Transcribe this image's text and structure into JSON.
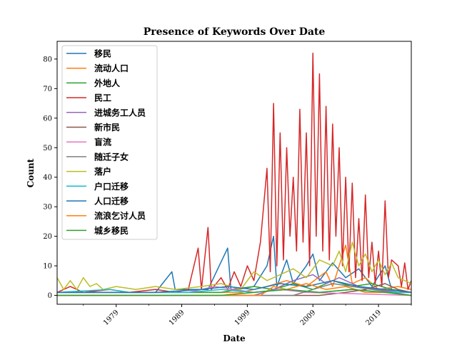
{
  "chart_data": {
    "type": "line",
    "title": "Presence of Keywords Over Date",
    "xlabel": "Date",
    "ylabel": "Count",
    "xlim": [
      1970,
      2024
    ],
    "ylim": [
      -3,
      86
    ],
    "xticks": [
      1979,
      1989,
      1999,
      2009,
      2019
    ],
    "xtick_labels": [
      "1979",
      "1989",
      "1999",
      "2009",
      "2019"
    ],
    "yticks": [
      0,
      10,
      20,
      30,
      40,
      50,
      60,
      70,
      80
    ],
    "ytick_labels": [
      "0",
      "10",
      "20",
      "30",
      "40",
      "50",
      "60",
      "70",
      "80"
    ],
    "legend_position": "top-left",
    "series": [
      {
        "name": "移民",
        "color": "#1f77b4",
        "points": [
          [
            1970,
            1
          ],
          [
            1985,
            1
          ],
          [
            1987.5,
            8
          ],
          [
            1988,
            2
          ],
          [
            1993,
            2
          ],
          [
            1996,
            16
          ],
          [
            1996.5,
            2
          ],
          [
            2000,
            3
          ],
          [
            2002,
            10
          ],
          [
            2003,
            20
          ],
          [
            2003.5,
            3
          ],
          [
            2005,
            12
          ],
          [
            2006,
            4
          ],
          [
            2008,
            10
          ],
          [
            2009,
            14
          ],
          [
            2010,
            5
          ],
          [
            2012,
            11
          ],
          [
            2014,
            6
          ],
          [
            2016,
            9
          ],
          [
            2018,
            3
          ],
          [
            2020,
            10
          ],
          [
            2021,
            2
          ],
          [
            2024,
            1
          ]
        ]
      },
      {
        "name": "流动人口",
        "color": "#ff7f0e",
        "points": [
          [
            1970,
            1
          ],
          [
            1998,
            1
          ],
          [
            2002,
            3
          ],
          [
            2005,
            5
          ],
          [
            2008,
            3
          ],
          [
            2011,
            8
          ],
          [
            2012,
            3
          ],
          [
            2014,
            17
          ],
          [
            2015,
            4
          ],
          [
            2017,
            6
          ],
          [
            2019,
            2
          ],
          [
            2022,
            3
          ],
          [
            2024,
            2
          ]
        ]
      },
      {
        "name": "外地人",
        "color": "#2ca02c",
        "points": [
          [
            1970,
            1
          ],
          [
            1995,
            1
          ],
          [
            2000,
            3
          ],
          [
            2003,
            2
          ],
          [
            2006,
            4
          ],
          [
            2009,
            2
          ],
          [
            2012,
            5
          ],
          [
            2015,
            3
          ],
          [
            2018,
            4
          ],
          [
            2021,
            2
          ],
          [
            2024,
            1
          ]
        ]
      },
      {
        "name": "民工",
        "color": "#d62728",
        "points": [
          [
            1970,
            1
          ],
          [
            1972,
            3
          ],
          [
            1974,
            1
          ],
          [
            1978,
            2
          ],
          [
            1981,
            1
          ],
          [
            1985,
            2
          ],
          [
            1988,
            1
          ],
          [
            1990,
            2
          ],
          [
            1991.5,
            16
          ],
          [
            1992,
            2
          ],
          [
            1993,
            23
          ],
          [
            1993.5,
            2
          ],
          [
            1995,
            6
          ],
          [
            1996,
            2
          ],
          [
            1997,
            8
          ],
          [
            1998,
            3
          ],
          [
            1999,
            10
          ],
          [
            2000,
            5
          ],
          [
            2001,
            18
          ],
          [
            2002,
            43
          ],
          [
            2002.5,
            8
          ],
          [
            2003,
            65
          ],
          [
            2003.5,
            10
          ],
          [
            2004,
            55
          ],
          [
            2004.5,
            12
          ],
          [
            2005,
            50
          ],
          [
            2005.5,
            20
          ],
          [
            2006,
            40
          ],
          [
            2006.5,
            15
          ],
          [
            2007,
            63
          ],
          [
            2007.5,
            18
          ],
          [
            2008,
            55
          ],
          [
            2008.5,
            10
          ],
          [
            2009,
            82
          ],
          [
            2009.5,
            20
          ],
          [
            2010,
            75
          ],
          [
            2010.5,
            15
          ],
          [
            2011,
            64
          ],
          [
            2011.5,
            12
          ],
          [
            2012,
            58
          ],
          [
            2012.5,
            20
          ],
          [
            2013,
            50
          ],
          [
            2013.5,
            10
          ],
          [
            2014,
            40
          ],
          [
            2014.5,
            8
          ],
          [
            2015,
            38
          ],
          [
            2015.5,
            6
          ],
          [
            2016,
            26
          ],
          [
            2016.5,
            5
          ],
          [
            2017,
            34
          ],
          [
            2017.5,
            6
          ],
          [
            2018,
            18
          ],
          [
            2018.5,
            4
          ],
          [
            2019,
            15
          ],
          [
            2019.5,
            3
          ],
          [
            2020,
            32
          ],
          [
            2020.5,
            6
          ],
          [
            2021,
            12
          ],
          [
            2022,
            10
          ],
          [
            2022.5,
            3
          ],
          [
            2023,
            11
          ],
          [
            2023.5,
            2
          ],
          [
            2024,
            5
          ]
        ]
      },
      {
        "name": "进城务工人员",
        "color": "#9467bd",
        "points": [
          [
            1970,
            0
          ],
          [
            2000,
            0
          ],
          [
            2003,
            2
          ],
          [
            2006,
            5
          ],
          [
            2009,
            7
          ],
          [
            2011,
            4
          ],
          [
            2013,
            6
          ],
          [
            2016,
            3
          ],
          [
            2019,
            2
          ],
          [
            2022,
            1
          ],
          [
            2024,
            1
          ]
        ]
      },
      {
        "name": "新市民",
        "color": "#8c564b",
        "points": [
          [
            1970,
            0
          ],
          [
            2010,
            0
          ],
          [
            2014,
            1
          ],
          [
            2017,
            2
          ],
          [
            2020,
            4
          ],
          [
            2022,
            2
          ],
          [
            2024,
            1
          ]
        ]
      },
      {
        "name": "盲流",
        "color": "#e377c2",
        "points": [
          [
            1970,
            1
          ],
          [
            1990,
            1
          ],
          [
            1994,
            3
          ],
          [
            1997,
            2
          ],
          [
            2000,
            1
          ],
          [
            2004,
            2
          ],
          [
            2008,
            1
          ],
          [
            2024,
            0
          ]
        ]
      },
      {
        "name": "随迁子女",
        "color": "#7f7f7f",
        "points": [
          [
            1970,
            0
          ],
          [
            2006,
            0
          ],
          [
            2009,
            2
          ],
          [
            2012,
            4
          ],
          [
            2015,
            3
          ],
          [
            2018,
            2
          ],
          [
            2021,
            1
          ],
          [
            2024,
            0
          ]
        ]
      },
      {
        "name": "落户",
        "color": "#bcbd22",
        "points": [
          [
            1970,
            6
          ],
          [
            1971,
            2
          ],
          [
            1972,
            5
          ],
          [
            1973,
            2
          ],
          [
            1974,
            6
          ],
          [
            1975,
            3
          ],
          [
            1976,
            4
          ],
          [
            1977,
            2
          ],
          [
            1979,
            3
          ],
          [
            1982,
            2
          ],
          [
            1985,
            3
          ],
          [
            1988,
            2
          ],
          [
            1992,
            3
          ],
          [
            1995,
            4
          ],
          [
            1998,
            2
          ],
          [
            2000,
            8
          ],
          [
            2002,
            5
          ],
          [
            2004,
            7
          ],
          [
            2006,
            9
          ],
          [
            2008,
            6
          ],
          [
            2010,
            12
          ],
          [
            2012,
            10
          ],
          [
            2013,
            15
          ],
          [
            2014,
            8
          ],
          [
            2015,
            18
          ],
          [
            2016,
            10
          ],
          [
            2017,
            14
          ],
          [
            2018,
            8
          ],
          [
            2019,
            12
          ],
          [
            2020,
            7
          ],
          [
            2021,
            11
          ],
          [
            2022,
            6
          ],
          [
            2023,
            5
          ],
          [
            2024,
            4
          ]
        ]
      },
      {
        "name": "户口迁移",
        "color": "#17becf",
        "points": [
          [
            1970,
            1
          ],
          [
            1978,
            2
          ],
          [
            1981,
            1
          ],
          [
            1990,
            1
          ],
          [
            1995,
            2
          ],
          [
            2000,
            1
          ],
          [
            2005,
            2
          ],
          [
            2010,
            1
          ],
          [
            2015,
            2
          ],
          [
            2020,
            1
          ],
          [
            2024,
            1
          ]
        ]
      },
      {
        "name": "人口迁移",
        "color": "#1f77b4",
        "points": [
          [
            1970,
            1
          ],
          [
            1985,
            1
          ],
          [
            1992,
            2
          ],
          [
            1996,
            3
          ],
          [
            2000,
            2
          ],
          [
            2004,
            4
          ],
          [
            2008,
            3
          ],
          [
            2012,
            5
          ],
          [
            2016,
            3
          ],
          [
            2020,
            2
          ],
          [
            2024,
            1
          ]
        ]
      },
      {
        "name": "流浪乞讨人员",
        "color": "#ff7f0e",
        "points": [
          [
            1970,
            0
          ],
          [
            2001,
            0
          ],
          [
            2003,
            3
          ],
          [
            2005,
            2
          ],
          [
            2008,
            4
          ],
          [
            2011,
            2
          ],
          [
            2014,
            3
          ],
          [
            2017,
            1
          ],
          [
            2020,
            1
          ],
          [
            2024,
            0
          ]
        ]
      },
      {
        "name": "城乡移民",
        "color": "#2ca02c",
        "points": [
          [
            1970,
            0
          ],
          [
            1995,
            0
          ],
          [
            2000,
            1
          ],
          [
            2005,
            2
          ],
          [
            2010,
            1
          ],
          [
            2015,
            2
          ],
          [
            2020,
            1
          ],
          [
            2024,
            0
          ]
        ]
      }
    ]
  }
}
